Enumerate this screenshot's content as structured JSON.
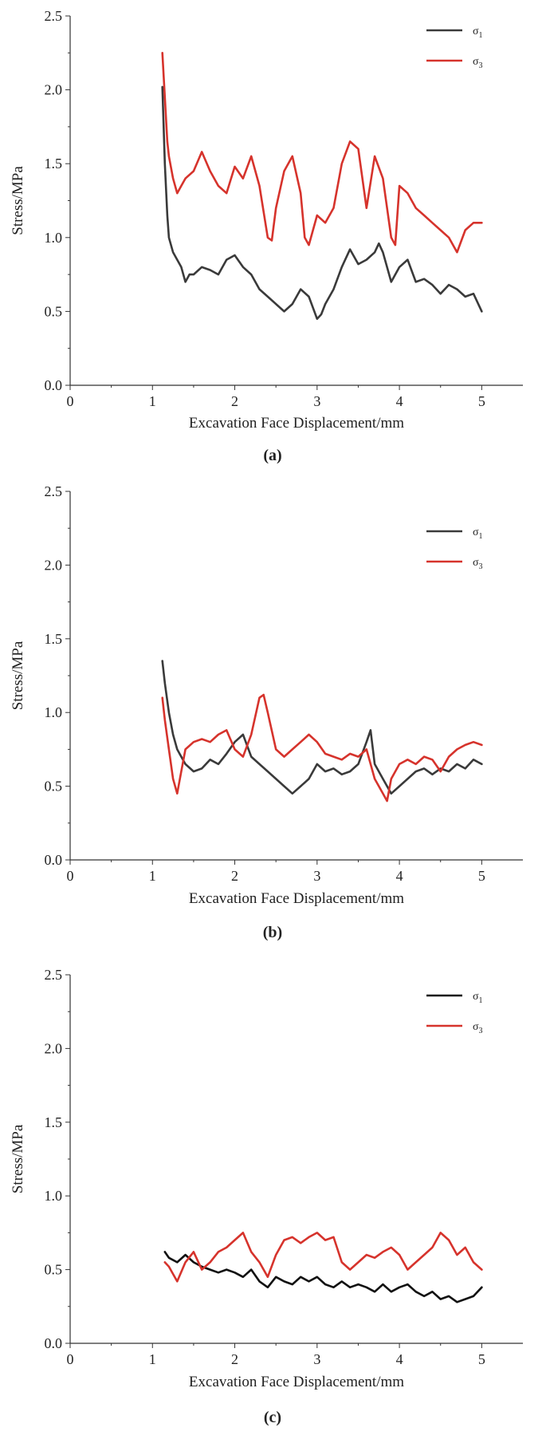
{
  "chart_data": [
    {
      "type": "line",
      "panel_label": "(a)",
      "xlabel": "Excavation Face Displacement/mm",
      "ylabel": "Stress/MPa",
      "xlim": [
        0,
        5.5
      ],
      "ylim": [
        0,
        2.5
      ],
      "xticks": [
        "0",
        "1",
        "2",
        "3",
        "4",
        "5"
      ],
      "yticks": [
        "0.0",
        "0.5",
        "1.0",
        "1.5",
        "2.0",
        "2.5"
      ],
      "legend": "top-right",
      "grid": false,
      "series": [
        {
          "name": "σ1",
          "color": "#3a3a3a",
          "x": [
            1.12,
            1.15,
            1.18,
            1.2,
            1.25,
            1.3,
            1.35,
            1.4,
            1.45,
            1.5,
            1.6,
            1.7,
            1.8,
            1.9,
            2.0,
            2.1,
            2.2,
            2.3,
            2.4,
            2.5,
            2.6,
            2.7,
            2.8,
            2.9,
            3.0,
            3.05,
            3.1,
            3.2,
            3.3,
            3.4,
            3.5,
            3.6,
            3.7,
            3.75,
            3.8,
            3.9,
            4.0,
            4.1,
            4.2,
            4.3,
            4.4,
            4.5,
            4.6,
            4.7,
            4.8,
            4.9,
            5.0
          ],
          "y": [
            2.02,
            1.5,
            1.15,
            1.0,
            0.9,
            0.85,
            0.8,
            0.7,
            0.75,
            0.75,
            0.8,
            0.78,
            0.75,
            0.85,
            0.88,
            0.8,
            0.75,
            0.65,
            0.6,
            0.55,
            0.5,
            0.55,
            0.65,
            0.6,
            0.45,
            0.48,
            0.55,
            0.65,
            0.8,
            0.92,
            0.82,
            0.85,
            0.9,
            0.96,
            0.9,
            0.7,
            0.8,
            0.85,
            0.7,
            0.72,
            0.68,
            0.62,
            0.68,
            0.65,
            0.6,
            0.62,
            0.5
          ]
        },
        {
          "name": "σ3",
          "color": "#d6332c",
          "x": [
            1.12,
            1.15,
            1.18,
            1.2,
            1.25,
            1.3,
            1.35,
            1.4,
            1.5,
            1.6,
            1.7,
            1.8,
            1.9,
            2.0,
            2.1,
            2.2,
            2.3,
            2.4,
            2.45,
            2.5,
            2.6,
            2.7,
            2.8,
            2.85,
            2.9,
            3.0,
            3.1,
            3.2,
            3.3,
            3.4,
            3.5,
            3.6,
            3.7,
            3.8,
            3.9,
            3.95,
            4.0,
            4.1,
            4.2,
            4.3,
            4.4,
            4.5,
            4.6,
            4.7,
            4.8,
            4.9,
            5.0
          ],
          "y": [
            2.25,
            1.95,
            1.65,
            1.55,
            1.4,
            1.3,
            1.35,
            1.4,
            1.45,
            1.58,
            1.45,
            1.35,
            1.3,
            1.48,
            1.4,
            1.55,
            1.35,
            1.0,
            0.98,
            1.2,
            1.45,
            1.55,
            1.3,
            1.0,
            0.95,
            1.15,
            1.1,
            1.2,
            1.5,
            1.65,
            1.6,
            1.2,
            1.55,
            1.4,
            1.0,
            0.95,
            1.35,
            1.3,
            1.2,
            1.15,
            1.1,
            1.05,
            1.0,
            0.9,
            1.05,
            1.1,
            1.1
          ]
        }
      ]
    },
    {
      "type": "line",
      "panel_label": "(b)",
      "xlabel": "Excavation Face Displacement/mm",
      "ylabel": "Stress/MPa",
      "xlim": [
        0,
        5.5
      ],
      "ylim": [
        0,
        2.5
      ],
      "xticks": [
        "0",
        "1",
        "2",
        "3",
        "4",
        "5"
      ],
      "yticks": [
        "0.0",
        "0.5",
        "1.0",
        "1.5",
        "2.0",
        "2.5"
      ],
      "legend": "top-right",
      "grid": false,
      "series": [
        {
          "name": "σ1",
          "color": "#3a3a3a",
          "x": [
            1.12,
            1.15,
            1.2,
            1.25,
            1.3,
            1.35,
            1.4,
            1.5,
            1.6,
            1.7,
            1.8,
            1.9,
            2.0,
            2.1,
            2.2,
            2.3,
            2.4,
            2.5,
            2.6,
            2.7,
            2.8,
            2.9,
            3.0,
            3.1,
            3.2,
            3.3,
            3.4,
            3.5,
            3.6,
            3.65,
            3.7,
            3.8,
            3.9,
            4.0,
            4.1,
            4.2,
            4.3,
            4.4,
            4.5,
            4.6,
            4.7,
            4.8,
            4.9,
            5.0
          ],
          "y": [
            1.35,
            1.2,
            1.0,
            0.85,
            0.75,
            0.7,
            0.65,
            0.6,
            0.62,
            0.68,
            0.65,
            0.72,
            0.8,
            0.85,
            0.7,
            0.65,
            0.6,
            0.55,
            0.5,
            0.45,
            0.5,
            0.55,
            0.65,
            0.6,
            0.62,
            0.58,
            0.6,
            0.65,
            0.8,
            0.88,
            0.65,
            0.55,
            0.45,
            0.5,
            0.55,
            0.6,
            0.62,
            0.58,
            0.62,
            0.6,
            0.65,
            0.62,
            0.68,
            0.65
          ]
        },
        {
          "name": "σ3",
          "color": "#d6332c",
          "x": [
            1.12,
            1.15,
            1.2,
            1.25,
            1.3,
            1.35,
            1.4,
            1.5,
            1.6,
            1.7,
            1.8,
            1.9,
            2.0,
            2.1,
            2.2,
            2.3,
            2.35,
            2.4,
            2.5,
            2.6,
            2.7,
            2.8,
            2.9,
            3.0,
            3.1,
            3.2,
            3.3,
            3.4,
            3.5,
            3.6,
            3.7,
            3.8,
            3.85,
            3.9,
            4.0,
            4.1,
            4.2,
            4.3,
            4.4,
            4.5,
            4.6,
            4.7,
            4.8,
            4.9,
            5.0
          ],
          "y": [
            1.1,
            0.95,
            0.75,
            0.55,
            0.45,
            0.6,
            0.75,
            0.8,
            0.82,
            0.8,
            0.85,
            0.88,
            0.75,
            0.7,
            0.85,
            1.1,
            1.12,
            1.0,
            0.75,
            0.7,
            0.75,
            0.8,
            0.85,
            0.8,
            0.72,
            0.7,
            0.68,
            0.72,
            0.7,
            0.75,
            0.55,
            0.45,
            0.4,
            0.55,
            0.65,
            0.68,
            0.65,
            0.7,
            0.68,
            0.6,
            0.7,
            0.75,
            0.78,
            0.8,
            0.78
          ]
        }
      ]
    },
    {
      "type": "line",
      "panel_label": "(c)",
      "xlabel": "Excavation Face Displacement/mm",
      "ylabel": "Stress/MPa",
      "xlim": [
        0,
        5.5
      ],
      "ylim": [
        0,
        2.5
      ],
      "xticks": [
        "0",
        "1",
        "2",
        "3",
        "4",
        "5"
      ],
      "yticks": [
        "0.0",
        "0.5",
        "1.0",
        "1.5",
        "2.0",
        "2.5"
      ],
      "legend": "top-right",
      "grid": false,
      "series": [
        {
          "name": "σ1",
          "color": "#111111",
          "x": [
            1.15,
            1.2,
            1.3,
            1.4,
            1.5,
            1.6,
            1.7,
            1.8,
            1.9,
            2.0,
            2.1,
            2.2,
            2.3,
            2.4,
            2.5,
            2.6,
            2.7,
            2.8,
            2.9,
            3.0,
            3.1,
            3.2,
            3.3,
            3.4,
            3.5,
            3.6,
            3.7,
            3.8,
            3.9,
            4.0,
            4.1,
            4.2,
            4.3,
            4.4,
            4.5,
            4.6,
            4.7,
            4.8,
            4.9,
            5.0
          ],
          "y": [
            0.62,
            0.58,
            0.55,
            0.6,
            0.55,
            0.52,
            0.5,
            0.48,
            0.5,
            0.48,
            0.45,
            0.5,
            0.42,
            0.38,
            0.45,
            0.42,
            0.4,
            0.45,
            0.42,
            0.45,
            0.4,
            0.38,
            0.42,
            0.38,
            0.4,
            0.38,
            0.35,
            0.4,
            0.35,
            0.38,
            0.4,
            0.35,
            0.32,
            0.35,
            0.3,
            0.32,
            0.28,
            0.3,
            0.32,
            0.38
          ]
        },
        {
          "name": "σ3",
          "color": "#d6332c",
          "x": [
            1.15,
            1.2,
            1.3,
            1.4,
            1.5,
            1.6,
            1.7,
            1.8,
            1.9,
            2.0,
            2.1,
            2.2,
            2.3,
            2.4,
            2.5,
            2.6,
            2.7,
            2.8,
            2.9,
            3.0,
            3.1,
            3.2,
            3.3,
            3.4,
            3.5,
            3.6,
            3.7,
            3.8,
            3.9,
            4.0,
            4.1,
            4.2,
            4.3,
            4.4,
            4.5,
            4.6,
            4.7,
            4.8,
            4.9,
            5.0
          ],
          "y": [
            0.55,
            0.52,
            0.42,
            0.55,
            0.62,
            0.5,
            0.55,
            0.62,
            0.65,
            0.7,
            0.75,
            0.62,
            0.55,
            0.45,
            0.6,
            0.7,
            0.72,
            0.68,
            0.72,
            0.75,
            0.7,
            0.72,
            0.55,
            0.5,
            0.55,
            0.6,
            0.58,
            0.62,
            0.65,
            0.6,
            0.5,
            0.55,
            0.6,
            0.65,
            0.75,
            0.7,
            0.6,
            0.65,
            0.55,
            0.5
          ]
        }
      ]
    }
  ]
}
